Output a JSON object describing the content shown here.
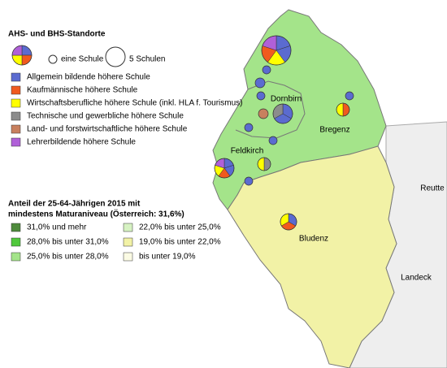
{
  "legend_schools": {
    "title": "AHS- und BHS-Standorte",
    "small_label": "eine Schule",
    "large_label": "5 Schulen",
    "items": [
      {
        "label": "Allgemein bildende höhere Schule",
        "color": "#5b6bd0"
      },
      {
        "label": "Kaufmännische höhere Schule",
        "color": "#f05a1e"
      },
      {
        "label": "Wirtschaftsberufliche höhere Schule (inkl. HLA f. Tourismus)",
        "color": "#ffff00"
      },
      {
        "label": "Technische und gewerbliche höhere Schule",
        "color": "#8c8c8c"
      },
      {
        "label": "Land- und forstwirtschaftliche höhere Schule",
        "color": "#c8805e"
      },
      {
        "label": "Lehrerbildende höhere Schule",
        "color": "#b060d8"
      }
    ]
  },
  "legend_share": {
    "title_lines": [
      "Anteil der 25-64-Jährigen 2015 mit",
      "mindestens Maturaniveau (Österreich: 31,6%)"
    ],
    "items": [
      {
        "label": "31,0% und mehr",
        "color": "#4e8a3c"
      },
      {
        "label": "28,0% bis unter 31,0%",
        "color": "#50c83c"
      },
      {
        "label": "25,0% bis unter 28,0%",
        "color": "#a4e48a"
      },
      {
        "label": "22,0% bis unter 25,0%",
        "color": "#d6f2c2"
      },
      {
        "label": "19,0% bis unter 22,0%",
        "color": "#f2f2a6"
      },
      {
        "label": "bis unter 19,0%",
        "color": "#fbfbe4"
      }
    ]
  },
  "places": [
    "Dornbirn",
    "Bregenz",
    "Feldkirch",
    "Bludenz",
    "Reutte",
    "Landeck"
  ]
}
